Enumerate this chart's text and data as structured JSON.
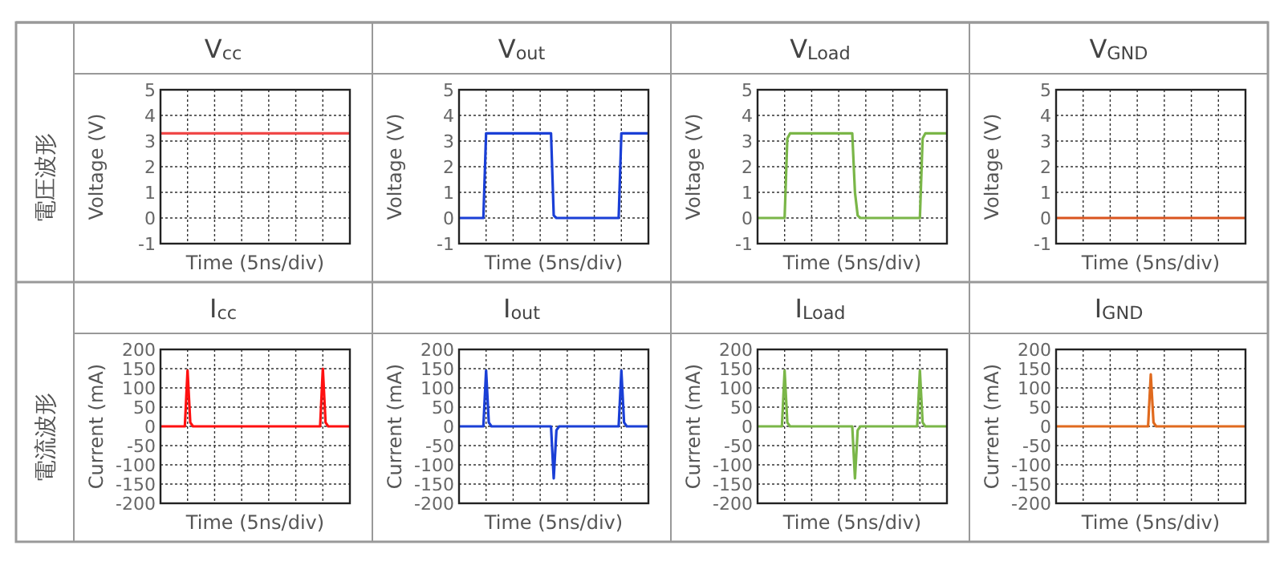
{
  "chart_data": [
    {
      "type": "line",
      "title": "V$_{cc}$",
      "xlabel": "Time (5ns/div)",
      "ylabel": "Voltage (V)",
      "annotations": [
        "電圧波形"
      ],
      "categories": [
        null,
        null,
        null,
        null,
        null,
        null,
        null,
        null,
        null,
        null,
        null,
        null,
        null,
        null,
        null,
        null,
        null,
        null,
        null,
        null,
        null,
        null,
        null,
        null,
        null,
        null,
        null,
        null,
        null,
        null,
        null,
        null,
        null,
        null,
        null,
        null,
        null,
        null,
        null,
        null,
        null,
        null,
        null,
        null,
        null,
        null,
        null,
        null,
        null,
        null,
        null,
        null,
        null,
        null,
        null,
        null,
        null,
        null,
        null,
        null,
        null,
        null,
        null,
        null,
        null,
        null,
        null,
        null,
        null,
        null,
        null
      ],
      "ylim": [
        -1,
        5
      ],
      "yticks": [
        -1,
        0,
        1,
        2,
        3,
        4,
        5
      ],
      "grid": true,
      "tick_labels": "y",
      "series": [
        {
          "color": "#f04848",
          "values": [
            3.3,
            3.3,
            3.3,
            3.3,
            3.3,
            3.3,
            3.3,
            3.3,
            3.3,
            3.3,
            3.3,
            3.3,
            3.3,
            3.3,
            3.3,
            3.3,
            3.3,
            3.3,
            3.3,
            3.3,
            3.3,
            3.3,
            3.3,
            3.3,
            3.3,
            3.3,
            3.3,
            3.3,
            3.3,
            3.3,
            3.3,
            3.3,
            3.3,
            3.3,
            3.3,
            3.3,
            3.3,
            3.3,
            3.3,
            3.3,
            3.3,
            3.3,
            3.3,
            3.3,
            3.3,
            3.3,
            3.3,
            3.3,
            3.3,
            3.3,
            3.3,
            3.3,
            3.3,
            3.3,
            3.3,
            3.3,
            3.3,
            3.3,
            3.3,
            3.3,
            3.3,
            3.3,
            3.3,
            3.3,
            3.3,
            3.3,
            3.3,
            3.3,
            3.3,
            3.3,
            3.3
          ]
        }
      ]
    },
    {
      "type": "line",
      "title": "V$_{out}$",
      "xlabel": "Time (5ns/div)",
      "ylabel": "Voltage (V)",
      "categories": [
        null,
        null,
        null,
        null,
        null,
        null,
        null,
        null,
        null,
        null,
        null,
        null,
        null,
        null,
        null,
        null,
        null,
        null,
        null,
        null,
        null,
        null,
        null,
        null,
        null,
        null,
        null,
        null,
        null,
        null,
        null,
        null,
        null,
        null,
        null,
        null,
        null,
        null,
        null,
        null,
        null,
        null,
        null,
        null,
        null,
        null,
        null,
        null,
        null,
        null,
        null,
        null,
        null,
        null,
        null,
        null,
        null,
        null,
        null,
        null,
        null,
        null,
        null,
        null,
        null,
        null,
        null,
        null,
        null,
        null,
        null
      ],
      "ylim": [
        -1,
        5
      ],
      "yticks": [
        -1,
        0,
        1,
        2,
        3,
        4,
        5
      ],
      "grid": true,
      "tick_labels": "y",
      "series": [
        {
          "color": "#1a3fd6",
          "values": [
            0,
            0,
            0,
            0,
            0,
            0,
            0,
            0,
            0,
            0,
            3.3,
            3.3,
            3.3,
            3.3,
            3.3,
            3.3,
            3.3,
            3.3,
            3.3,
            3.3,
            3.3,
            3.3,
            3.3,
            3.3,
            3.3,
            3.3,
            3.3,
            3.3,
            3.3,
            3.3,
            3.3,
            3.3,
            3.3,
            3.3,
            3.3,
            0.1,
            0,
            0,
            0,
            0,
            0,
            0,
            0,
            0,
            0,
            0,
            0,
            0,
            0,
            0,
            0,
            0,
            0,
            0,
            0,
            0,
            0,
            0,
            0,
            0,
            3.3,
            3.3,
            3.3,
            3.3,
            3.3,
            3.3,
            3.3,
            3.3,
            3.3,
            3.3,
            3.3
          ]
        }
      ]
    },
    {
      "type": "line",
      "title": "V$_{Load}$",
      "xlabel": "Time (5ns/div)",
      "ylabel": "Voltage (V)",
      "categories": [
        null,
        null,
        null,
        null,
        null,
        null,
        null,
        null,
        null,
        null,
        null,
        null,
        null,
        null,
        null,
        null,
        null,
        null,
        null,
        null,
        null,
        null,
        null,
        null,
        null,
        null,
        null,
        null,
        null,
        null,
        null,
        null,
        null,
        null,
        null,
        null,
        null,
        null,
        null,
        null,
        null,
        null,
        null,
        null,
        null,
        null,
        null,
        null,
        null,
        null,
        null,
        null,
        null,
        null,
        null,
        null,
        null,
        null,
        null,
        null,
        null,
        null,
        null,
        null,
        null,
        null,
        null,
        null,
        null,
        null,
        null
      ],
      "ylim": [
        -1,
        5
      ],
      "yticks": [
        -1,
        0,
        1,
        2,
        3,
        4,
        5
      ],
      "grid": true,
      "tick_labels": "y",
      "series": [
        {
          "color": "#7ab648",
          "values": [
            0,
            0,
            0,
            0,
            0,
            0,
            0,
            0,
            0,
            0,
            0,
            3.1,
            3.3,
            3.3,
            3.3,
            3.3,
            3.3,
            3.3,
            3.3,
            3.3,
            3.3,
            3.3,
            3.3,
            3.3,
            3.3,
            3.3,
            3.3,
            3.3,
            3.3,
            3.3,
            3.3,
            3.3,
            3.3,
            3.3,
            3.3,
            3.3,
            1,
            0.1,
            0,
            0,
            0,
            0,
            0,
            0,
            0,
            0,
            0,
            0,
            0,
            0,
            0,
            0,
            0,
            0,
            0,
            0,
            0,
            0,
            0,
            0,
            0,
            3.1,
            3.3,
            3.3,
            3.3,
            3.3,
            3.3,
            3.3,
            3.3,
            3.3,
            3.3
          ]
        }
      ]
    },
    {
      "type": "line",
      "title": "V$_{GND}$",
      "xlabel": "Time (5ns/div)",
      "ylabel": "Voltage (V)",
      "categories": [
        null,
        null,
        null,
        null,
        null,
        null,
        null,
        null,
        null,
        null,
        null,
        null,
        null,
        null,
        null,
        null,
        null,
        null,
        null,
        null,
        null,
        null,
        null,
        null,
        null,
        null,
        null,
        null,
        null,
        null,
        null,
        null,
        null,
        null,
        null,
        null,
        null,
        null,
        null,
        null,
        null,
        null,
        null,
        null,
        null,
        null,
        null,
        null,
        null,
        null,
        null,
        null,
        null,
        null,
        null,
        null,
        null,
        null,
        null,
        null,
        null,
        null,
        null,
        null,
        null,
        null,
        null,
        null,
        null,
        null,
        null
      ],
      "ylim": [
        -1,
        5
      ],
      "yticks": [
        -1,
        0,
        1,
        2,
        3,
        4,
        5
      ],
      "grid": true,
      "tick_labels": "y",
      "series": [
        {
          "color": "#d9541e",
          "values": [
            0,
            0,
            0,
            0,
            0,
            0,
            0,
            0,
            0,
            0,
            0,
            0,
            0,
            0,
            0,
            0,
            0,
            0,
            0,
            0,
            0,
            0,
            0,
            0,
            0,
            0,
            0,
            0,
            0,
            0,
            0,
            0,
            0,
            0,
            0,
            0,
            0,
            0,
            0,
            0,
            0,
            0,
            0,
            0,
            0,
            0,
            0,
            0,
            0,
            0,
            0,
            0,
            0,
            0,
            0,
            0,
            0,
            0,
            0,
            0,
            0,
            0,
            0,
            0,
            0,
            0,
            0,
            0,
            0,
            0,
            0
          ]
        }
      ]
    },
    {
      "type": "line",
      "title": "I$_{cc}$",
      "xlabel": "Time (5ns/div)",
      "ylabel": "Current (mA)",
      "annotations": [
        "電流波形"
      ],
      "categories": [
        null,
        null,
        null,
        null,
        null,
        null,
        null,
        null,
        null,
        null,
        null,
        null,
        null,
        null,
        null,
        null,
        null,
        null,
        null,
        null,
        null,
        null,
        null,
        null,
        null,
        null,
        null,
        null,
        null,
        null,
        null,
        null,
        null,
        null,
        null,
        null,
        null,
        null,
        null,
        null,
        null,
        null,
        null,
        null,
        null,
        null,
        null,
        null,
        null,
        null,
        null,
        null,
        null,
        null,
        null,
        null,
        null,
        null,
        null,
        null,
        null,
        null,
        null,
        null,
        null,
        null,
        null,
        null,
        null,
        null,
        null
      ],
      "ylim": [
        -200,
        200
      ],
      "yticks": [
        -200,
        -150,
        -100,
        -50,
        0,
        50,
        100,
        150,
        200
      ],
      "grid": true,
      "tick_labels": "y",
      "series": [
        {
          "color": "#ff1010",
          "values": [
            0,
            0,
            0,
            0,
            0,
            0,
            0,
            0,
            0,
            0,
            145,
            10,
            0,
            0,
            0,
            0,
            0,
            0,
            0,
            0,
            0,
            0,
            0,
            0,
            0,
            0,
            0,
            0,
            0,
            0,
            0,
            0,
            0,
            0,
            0,
            0,
            0,
            0,
            0,
            0,
            0,
            0,
            0,
            0,
            0,
            0,
            0,
            0,
            0,
            0,
            0,
            0,
            0,
            0,
            0,
            0,
            0,
            0,
            0,
            0,
            150,
            10,
            0,
            0,
            0,
            0,
            0,
            0,
            0,
            0,
            0
          ]
        }
      ]
    },
    {
      "type": "line",
      "title": "I$_{out}$",
      "xlabel": "Time (5ns/div)",
      "ylabel": "Current (mA)",
      "categories": [
        null,
        null,
        null,
        null,
        null,
        null,
        null,
        null,
        null,
        null,
        null,
        null,
        null,
        null,
        null,
        null,
        null,
        null,
        null,
        null,
        null,
        null,
        null,
        null,
        null,
        null,
        null,
        null,
        null,
        null,
        null,
        null,
        null,
        null,
        null,
        null,
        null,
        null,
        null,
        null,
        null,
        null,
        null,
        null,
        null,
        null,
        null,
        null,
        null,
        null,
        null,
        null,
        null,
        null,
        null,
        null,
        null,
        null,
        null,
        null,
        null,
        null,
        null,
        null,
        null,
        null,
        null,
        null,
        null,
        null,
        null
      ],
      "ylim": [
        -200,
        200
      ],
      "yticks": [
        -200,
        -150,
        -100,
        -50,
        0,
        50,
        100,
        150,
        200
      ],
      "grid": true,
      "tick_labels": "y",
      "series": [
        {
          "color": "#1a3fd6",
          "values": [
            0,
            0,
            0,
            0,
            0,
            0,
            0,
            0,
            0,
            0,
            145,
            10,
            0,
            0,
            0,
            0,
            0,
            0,
            0,
            0,
            0,
            0,
            0,
            0,
            0,
            0,
            0,
            0,
            0,
            0,
            0,
            0,
            0,
            0,
            0,
            -135,
            -10,
            0,
            0,
            0,
            0,
            0,
            0,
            0,
            0,
            0,
            0,
            0,
            0,
            0,
            0,
            0,
            0,
            0,
            0,
            0,
            0,
            0,
            0,
            0,
            145,
            10,
            0,
            0,
            0,
            0,
            0,
            0,
            0,
            0,
            0
          ]
        }
      ]
    },
    {
      "type": "line",
      "title": "I$_{Load}$",
      "xlabel": "Time (5ns/div)",
      "ylabel": "Current (mA)",
      "categories": [
        null,
        null,
        null,
        null,
        null,
        null,
        null,
        null,
        null,
        null,
        null,
        null,
        null,
        null,
        null,
        null,
        null,
        null,
        null,
        null,
        null,
        null,
        null,
        null,
        null,
        null,
        null,
        null,
        null,
        null,
        null,
        null,
        null,
        null,
        null,
        null,
        null,
        null,
        null,
        null,
        null,
        null,
        null,
        null,
        null,
        null,
        null,
        null,
        null,
        null,
        null,
        null,
        null,
        null,
        null,
        null,
        null,
        null,
        null,
        null,
        null,
        null,
        null,
        null,
        null,
        null,
        null,
        null,
        null,
        null,
        null
      ],
      "ylim": [
        -200,
        200
      ],
      "yticks": [
        -200,
        -150,
        -100,
        -50,
        0,
        50,
        100,
        150,
        200
      ],
      "grid": true,
      "tick_labels": "y",
      "series": [
        {
          "color": "#7ab648",
          "values": [
            0,
            0,
            0,
            0,
            0,
            0,
            0,
            0,
            0,
            0,
            145,
            10,
            0,
            0,
            0,
            0,
            0,
            0,
            0,
            0,
            0,
            0,
            0,
            0,
            0,
            0,
            0,
            0,
            0,
            0,
            0,
            0,
            0,
            0,
            0,
            0,
            -135,
            -10,
            0,
            0,
            0,
            0,
            0,
            0,
            0,
            0,
            0,
            0,
            0,
            0,
            0,
            0,
            0,
            0,
            0,
            0,
            0,
            0,
            0,
            0,
            145,
            10,
            0,
            0,
            0,
            0,
            0,
            0,
            0,
            0,
            0
          ]
        }
      ]
    },
    {
      "type": "line",
      "title": "I$_{GND}$",
      "xlabel": "Time (5ns/div)",
      "ylabel": "Current (mA)",
      "categories": [
        null,
        null,
        null,
        null,
        null,
        null,
        null,
        null,
        null,
        null,
        null,
        null,
        null,
        null,
        null,
        null,
        null,
        null,
        null,
        null,
        null,
        null,
        null,
        null,
        null,
        null,
        null,
        null,
        null,
        null,
        null,
        null,
        null,
        null,
        null,
        null,
        null,
        null,
        null,
        null,
        null,
        null,
        null,
        null,
        null,
        null,
        null,
        null,
        null,
        null,
        null,
        null,
        null,
        null,
        null,
        null,
        null,
        null,
        null,
        null,
        null,
        null,
        null,
        null,
        null,
        null,
        null,
        null,
        null,
        null,
        null
      ],
      "ylim": [
        -200,
        200
      ],
      "yticks": [
        -200,
        -150,
        -100,
        -50,
        0,
        50,
        100,
        150,
        200
      ],
      "grid": true,
      "tick_labels": "y",
      "series": [
        {
          "color": "#e06a1e",
          "values": [
            0,
            0,
            0,
            0,
            0,
            0,
            0,
            0,
            0,
            0,
            0,
            0,
            0,
            0,
            0,
            0,
            0,
            0,
            0,
            0,
            0,
            0,
            0,
            0,
            0,
            0,
            0,
            0,
            0,
            0,
            0,
            0,
            0,
            0,
            0,
            135,
            10,
            0,
            0,
            0,
            0,
            0,
            0,
            0,
            0,
            0,
            0,
            0,
            0,
            0,
            0,
            0,
            0,
            0,
            0,
            0,
            0,
            0,
            0,
            0,
            0,
            0,
            0,
            0,
            0,
            0,
            0,
            0,
            0,
            0,
            0
          ]
        }
      ]
    }
  ]
}
